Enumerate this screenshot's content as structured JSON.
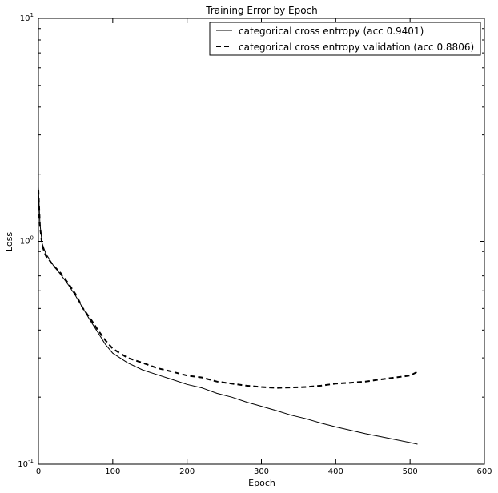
{
  "chart_data": {
    "type": "line",
    "title": "Training Error by Epoch",
    "xlabel": "Epoch",
    "ylabel": "Loss",
    "xlim": [
      0,
      600
    ],
    "ylim": [
      0.1,
      10
    ],
    "yscale": "log",
    "grid": false,
    "legend_position": "top-right",
    "x_ticks": [
      0,
      100,
      200,
      300,
      400,
      500,
      600
    ],
    "x_tick_labels": [
      "0",
      "100",
      "200",
      "300",
      "400",
      "500",
      "600"
    ],
    "y_major_ticks": [
      0.1,
      1,
      10
    ],
    "y_tick_labels": [
      {
        "base": "10",
        "exp": "-1"
      },
      {
        "base": "10",
        "exp": "0"
      },
      {
        "base": "10",
        "exp": "1"
      }
    ],
    "series": [
      {
        "name": "categorical cross entropy (acc 0.9401)",
        "style": "solid",
        "color": "#000000",
        "x": [
          0,
          2,
          5,
          10,
          15,
          20,
          30,
          40,
          50,
          60,
          70,
          80,
          90,
          100,
          120,
          140,
          160,
          180,
          200,
          220,
          240,
          260,
          280,
          300,
          320,
          340,
          360,
          380,
          400,
          420,
          440,
          460,
          480,
          500,
          510
        ],
        "y": [
          1.75,
          1.2,
          0.98,
          0.88,
          0.83,
          0.78,
          0.71,
          0.64,
          0.57,
          0.5,
          0.44,
          0.39,
          0.345,
          0.315,
          0.285,
          0.265,
          0.252,
          0.24,
          0.228,
          0.22,
          0.208,
          0.2,
          0.19,
          0.182,
          0.174,
          0.166,
          0.16,
          0.153,
          0.147,
          0.142,
          0.137,
          0.133,
          0.129,
          0.125,
          0.123
        ]
      },
      {
        "name": "categorical cross entropy validation (acc 0.8806)",
        "style": "dashed",
        "color": "#000000",
        "x": [
          0,
          2,
          5,
          10,
          15,
          20,
          30,
          40,
          50,
          60,
          70,
          80,
          90,
          100,
          120,
          140,
          160,
          180,
          200,
          220,
          240,
          260,
          280,
          300,
          320,
          340,
          360,
          380,
          400,
          420,
          440,
          460,
          480,
          500,
          510
        ],
        "y": [
          1.7,
          1.18,
          0.96,
          0.86,
          0.82,
          0.78,
          0.72,
          0.65,
          0.58,
          0.5,
          0.45,
          0.4,
          0.36,
          0.33,
          0.3,
          0.285,
          0.27,
          0.26,
          0.25,
          0.245,
          0.235,
          0.23,
          0.225,
          0.222,
          0.22,
          0.221,
          0.222,
          0.225,
          0.23,
          0.232,
          0.235,
          0.24,
          0.245,
          0.25,
          0.26
        ]
      }
    ]
  }
}
